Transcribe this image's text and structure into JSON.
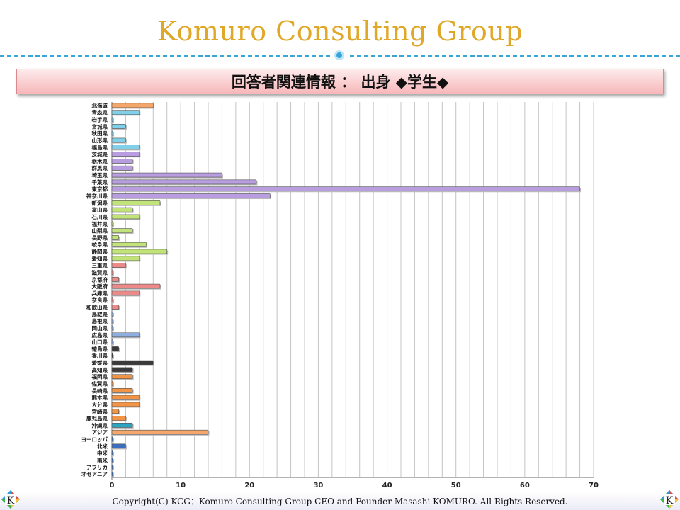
{
  "header": {
    "title": "Komuro Consulting Group",
    "subtitle": "回答者関連情報 ： 出身 ◆学生◆"
  },
  "footer": {
    "copyright": "Copyright(C) KCG：Komuro Consulting Group CEO and Founder Masashi KOMURO. All Rights Reserved.",
    "logo_letter": "K"
  },
  "chart_data": {
    "type": "bar",
    "orientation": "horizontal",
    "categories": [
      "北海道",
      "青森県",
      "岩手県",
      "宮城県",
      "秋田県",
      "山形県",
      "福島県",
      "茨城県",
      "栃木県",
      "群馬県",
      "埼玉県",
      "千葉県",
      "東京都",
      "神奈川県",
      "新潟県",
      "富山県",
      "石川県",
      "福井県",
      "山梨県",
      "長野県",
      "岐阜県",
      "静岡県",
      "愛知県",
      "三重県",
      "滋賀県",
      "京都府",
      "大阪府",
      "兵庫県",
      "奈良県",
      "和歌山県",
      "鳥取県",
      "島根県",
      "岡山県",
      "広島県",
      "山口県",
      "徳島県",
      "香川県",
      "愛媛県",
      "高知県",
      "福岡県",
      "佐賀県",
      "長崎県",
      "熊本県",
      "大分県",
      "宮崎県",
      "鹿児島県",
      "沖縄県",
      "アジア",
      "ヨーロッパ",
      "北米",
      "中米",
      "南米",
      "アフリカ",
      "オセアニア"
    ],
    "values": [
      6,
      4,
      0,
      2,
      0,
      2,
      4,
      4,
      3,
      3,
      16,
      21,
      68,
      23,
      7,
      3,
      4,
      0,
      3,
      1,
      5,
      8,
      4,
      2,
      0,
      1,
      7,
      4,
      0,
      1,
      0,
      0,
      0,
      4,
      0,
      1,
      0,
      6,
      3,
      3,
      0,
      3,
      4,
      4,
      1,
      2,
      3,
      14,
      0,
      2,
      0,
      0,
      0,
      0
    ],
    "bar_colors": [
      "#f5a66a",
      "#7fd0e8",
      "#7fd0e8",
      "#7fd0e8",
      "#7fd0e8",
      "#7fd0e8",
      "#7fd0e8",
      "#b89ee0",
      "#b89ee0",
      "#b89ee0",
      "#b89ee0",
      "#b89ee0",
      "#b89ee0",
      "#b89ee0",
      "#c2e27a",
      "#c2e27a",
      "#c2e27a",
      "#c2e27a",
      "#c2e27a",
      "#c2e27a",
      "#c2e27a",
      "#c2e27a",
      "#c2e27a",
      "#ec8a8a",
      "#ec8a8a",
      "#ec8a8a",
      "#ec8a8a",
      "#ec8a8a",
      "#ec8a8a",
      "#ec8a8a",
      "#8eaee0",
      "#8eaee0",
      "#8eaee0",
      "#8eaee0",
      "#8eaee0",
      "#3a3a3a",
      "#3a3a3a",
      "#3a3a3a",
      "#3a3a3a",
      "#f29446",
      "#f29446",
      "#f29446",
      "#f29446",
      "#f29446",
      "#f29446",
      "#f29446",
      "#2ba4c2",
      "#f5a66a",
      "#3c6ebf",
      "#3c6ebf",
      "#3c6ebf",
      "#3c6ebf",
      "#3c6ebf",
      "#3c6ebf"
    ],
    "xlim": [
      0,
      70
    ],
    "xticks": [
      0,
      10,
      20,
      30,
      40,
      50,
      60,
      70
    ],
    "grid": true
  }
}
